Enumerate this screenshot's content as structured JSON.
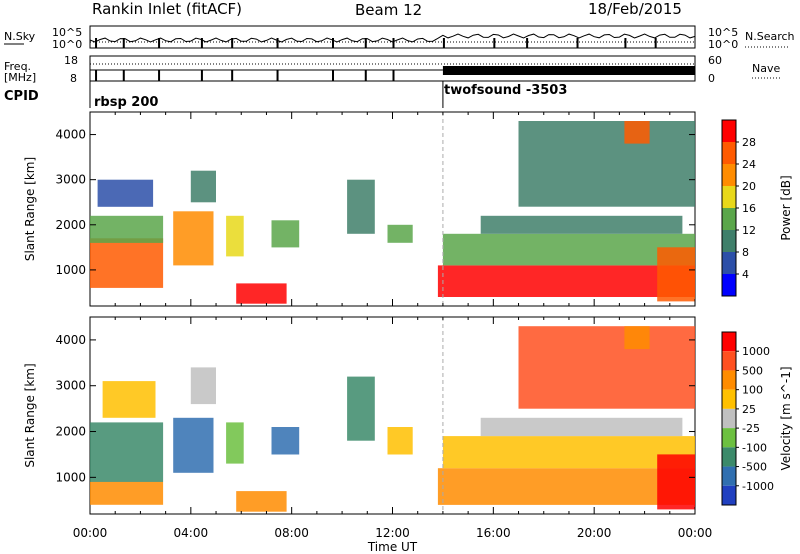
{
  "header": {
    "station": "Rankin Inlet (fitACF)",
    "beam": "Beam 12",
    "date": "18/Feb/2015"
  },
  "panel_labels": {
    "nsky": "N.Sky",
    "nsky_ticks": [
      "10^5",
      "10^0"
    ],
    "nsearch": "N.Search",
    "nsearch_ticks": [
      "10^5",
      "10^0"
    ],
    "freq": "Freq.",
    "freq_unit": "[MHz]",
    "freq_ticks": [
      "18",
      "8"
    ],
    "nave": "Nave",
    "nave_ticks": [
      "60",
      "0"
    ],
    "cpid": "CPID"
  },
  "cpid_segments": [
    {
      "label": "rbsp 200",
      "start_hour": 0
    },
    {
      "label": "twofsound -3503",
      "start_hour": 14
    }
  ],
  "colors": {
    "power": [
      "#0000ff",
      "#2c4fa8",
      "#3f7f6a",
      "#5aa64a",
      "#e8d81a",
      "#ff8c00",
      "#ff5a00",
      "#ff0000"
    ],
    "velocity": [
      "#2040c0",
      "#306fb0",
      "#3b8a6a",
      "#6cc040",
      "#c0c0c0",
      "#ffc000",
      "#ff8c00",
      "#ff5020",
      "#ff0000"
    ]
  },
  "chart_data": [
    {
      "type": "heatmap",
      "name": "power",
      "xlabel": "",
      "ylabel": "Slant Range [km]",
      "x_range_hours": [
        0,
        24
      ],
      "ylim": [
        200,
        4500
      ],
      "y_ticks": [
        1000,
        2000,
        3000,
        4000
      ],
      "colorbar_label": "Power [dB]",
      "colorbar_ticks": [
        "28",
        "24",
        "20",
        "16",
        "12",
        "8",
        "4"
      ],
      "cpid_change_hour": 14,
      "regions": [
        {
          "t0": 0.0,
          "t1": 2.9,
          "r0": 600,
          "r1": 1700,
          "level": 6
        },
        {
          "t0": 0.0,
          "t1": 2.9,
          "r0": 1600,
          "r1": 2200,
          "level": 3
        },
        {
          "t0": 0.3,
          "t1": 2.5,
          "r0": 2400,
          "r1": 3000,
          "level": 1
        },
        {
          "t0": 3.3,
          "t1": 4.9,
          "r0": 1100,
          "r1": 2300,
          "level": 5
        },
        {
          "t0": 4.0,
          "t1": 5.0,
          "r0": 2500,
          "r1": 3200,
          "level": 2
        },
        {
          "t0": 5.4,
          "t1": 6.1,
          "r0": 1300,
          "r1": 2200,
          "level": 4
        },
        {
          "t0": 5.8,
          "t1": 7.8,
          "r0": 250,
          "r1": 700,
          "level": 7
        },
        {
          "t0": 7.2,
          "t1": 8.3,
          "r0": 1500,
          "r1": 2100,
          "level": 3
        },
        {
          "t0": 10.2,
          "t1": 11.3,
          "r0": 1800,
          "r1": 3000,
          "level": 2
        },
        {
          "t0": 11.8,
          "t1": 12.8,
          "r0": 1600,
          "r1": 2000,
          "level": 3
        },
        {
          "t0": 13.8,
          "t1": 24.0,
          "r0": 400,
          "r1": 1100,
          "level": 7
        },
        {
          "t0": 14.0,
          "t1": 24.0,
          "r0": 1100,
          "r1": 1800,
          "level": 3
        },
        {
          "t0": 15.5,
          "t1": 23.5,
          "r0": 1800,
          "r1": 2200,
          "level": 2
        },
        {
          "t0": 17.0,
          "t1": 24.0,
          "r0": 2400,
          "r1": 4300,
          "level": 2
        },
        {
          "t0": 21.2,
          "t1": 22.2,
          "r0": 3800,
          "r1": 4300,
          "level": 6
        },
        {
          "t0": 22.5,
          "t1": 24.0,
          "r0": 300,
          "r1": 1500,
          "level": 6
        }
      ]
    },
    {
      "type": "heatmap",
      "name": "velocity",
      "xlabel": "Time UT",
      "ylabel": "Slant Range [km]",
      "x_range_hours": [
        0,
        24
      ],
      "x_ticks": [
        "00:00",
        "04:00",
        "08:00",
        "12:00",
        "16:00",
        "20:00",
        "00:00"
      ],
      "ylim": [
        200,
        4500
      ],
      "y_ticks": [
        1000,
        2000,
        3000,
        4000
      ],
      "colorbar_label": "Velocity [m s^-1]",
      "colorbar_ticks": [
        "1000",
        "500",
        "100",
        "25",
        "-25",
        "-100",
        "-500",
        "-1000"
      ],
      "cpid_change_hour": 14,
      "regions": [
        {
          "t0": 0.0,
          "t1": 2.9,
          "r0": 900,
          "r1": 2200,
          "level": 2
        },
        {
          "t0": 0.0,
          "t1": 2.9,
          "r0": 400,
          "r1": 900,
          "level": 6
        },
        {
          "t0": 0.5,
          "t1": 2.6,
          "r0": 2300,
          "r1": 3100,
          "level": 5
        },
        {
          "t0": 3.3,
          "t1": 4.9,
          "r0": 1100,
          "r1": 2300,
          "level": 1
        },
        {
          "t0": 4.0,
          "t1": 5.0,
          "r0": 2600,
          "r1": 3400,
          "level": 4
        },
        {
          "t0": 5.4,
          "t1": 6.1,
          "r0": 1300,
          "r1": 2200,
          "level": 3
        },
        {
          "t0": 5.8,
          "t1": 7.8,
          "r0": 250,
          "r1": 700,
          "level": 6
        },
        {
          "t0": 7.2,
          "t1": 8.3,
          "r0": 1500,
          "r1": 2100,
          "level": 1
        },
        {
          "t0": 10.2,
          "t1": 11.3,
          "r0": 1800,
          "r1": 3200,
          "level": 2
        },
        {
          "t0": 11.8,
          "t1": 12.8,
          "r0": 1500,
          "r1": 2100,
          "level": 5
        },
        {
          "t0": 13.8,
          "t1": 24.0,
          "r0": 400,
          "r1": 1200,
          "level": 6
        },
        {
          "t0": 14.0,
          "t1": 24.0,
          "r0": 1200,
          "r1": 1900,
          "level": 5
        },
        {
          "t0": 15.5,
          "t1": 23.5,
          "r0": 1900,
          "r1": 2300,
          "level": 4
        },
        {
          "t0": 17.0,
          "t1": 24.0,
          "r0": 2500,
          "r1": 4300,
          "level": 7
        },
        {
          "t0": 21.2,
          "t1": 22.2,
          "r0": 3800,
          "r1": 4300,
          "level": 6
        },
        {
          "t0": 22.5,
          "t1": 24.0,
          "r0": 300,
          "r1": 1500,
          "level": 8
        }
      ]
    }
  ]
}
